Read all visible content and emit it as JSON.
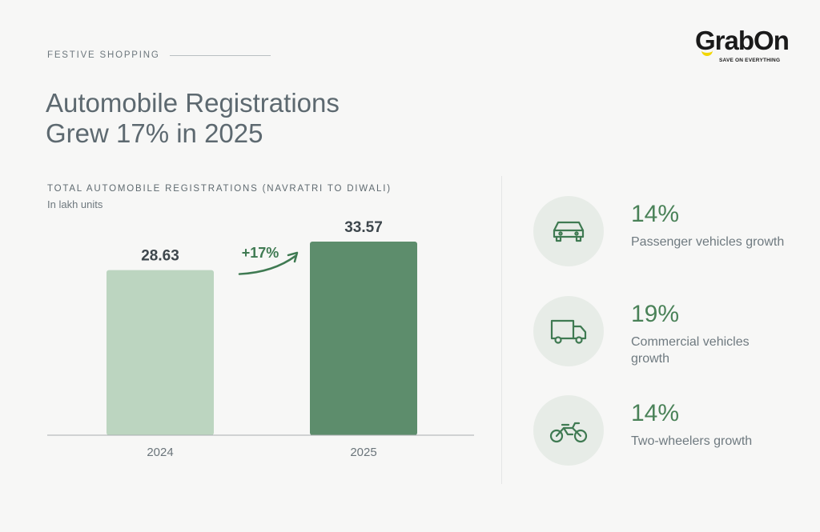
{
  "header": {
    "eyebrow": "FESTIVE SHOPPING",
    "title_line1": "Automobile Registrations",
    "title_line2": "Grew 17% in 2025"
  },
  "logo": {
    "text": "GrabOn",
    "tagline": "SAVE ON EVERYTHING",
    "accent": "#f2d600"
  },
  "chart_data": {
    "type": "bar",
    "title": "TOTAL AUTOMOBILE REGISTRATIONS (NAVRATRI TO DIWALI)",
    "subtitle": "In lakh units",
    "categories": [
      "2024",
      "2025"
    ],
    "values": [
      28.63,
      33.57
    ],
    "data_labels": [
      "28.63",
      "33.57"
    ],
    "colors": [
      "#bcd5c0",
      "#5d8d6c"
    ],
    "annotation": "+17%",
    "ylim": [
      0,
      38
    ],
    "grid": false,
    "legend": "none"
  },
  "stats": [
    {
      "value": "14%",
      "label": "Passenger vehicles growth",
      "icon": "car-icon"
    },
    {
      "value": "19%",
      "label": "Commercial vehicles growth",
      "icon": "truck-icon"
    },
    {
      "value": "14%",
      "label": "Two-wheelers growth",
      "icon": "motorcycle-icon"
    }
  ],
  "colors": {
    "accent_green": "#4a8258",
    "icon_stroke": "#3f7a52",
    "circle_bg": "#e7ece7"
  }
}
